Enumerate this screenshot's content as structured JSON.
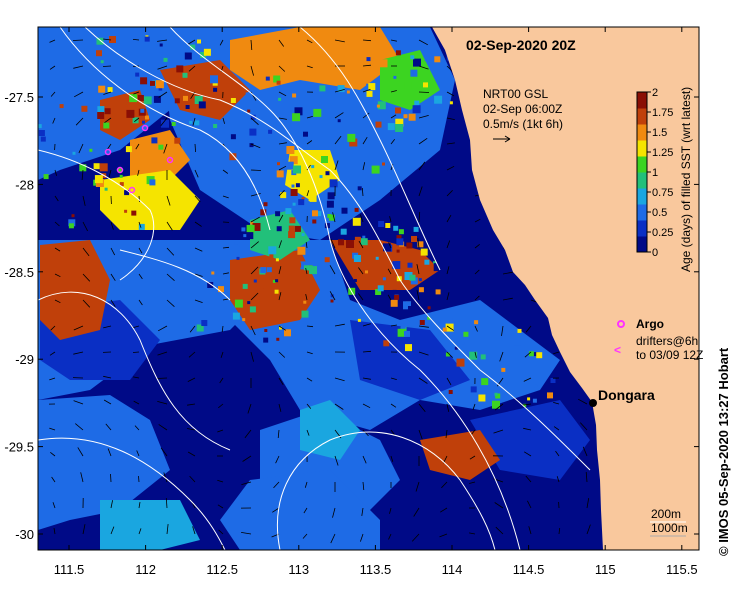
{
  "title": "02-Sep-2020 20Z",
  "current_legend": {
    "line1": "NRT00 GSL",
    "line2": "02-Sep 06:00Z",
    "line3": "0.5m/s (1kt 6h)"
  },
  "colorbar": {
    "label": "Age (days) of filled SST (wrt latest)",
    "ticks": [
      "0",
      "0.25",
      "0.5",
      "0.75",
      "1",
      "1.25",
      "1.5",
      "1.75",
      "2"
    ],
    "colors": [
      "#000a87",
      "#0a2fc4",
      "#1e6be6",
      "#1aa6e0",
      "#22c07a",
      "#3cd421",
      "#f5e400",
      "#f08a10",
      "#c0400a",
      "#8a0f05"
    ]
  },
  "axes": {
    "x_ticks": [
      "111.5",
      "112",
      "112.5",
      "113",
      "113.5",
      "114",
      "114.5",
      "115",
      "115.5"
    ],
    "y_ticks": [
      "-27.5",
      "-28",
      "-28.5",
      "-29",
      "-29.5",
      "-30"
    ]
  },
  "place": {
    "name": "Dongara"
  },
  "legend": {
    "argo": "Argo",
    "drifters_line1": "drifters@6h",
    "drifters_line2": "to 03/09 12Z"
  },
  "contours": {
    "line1": "200m",
    "line2": "1000m"
  },
  "credit": "© IMOS 05-Sep-2020 13:27 Hobart",
  "colors": {
    "land": "#f9c89d",
    "contour": "#ffffff",
    "argo": "#ff33ff"
  }
}
